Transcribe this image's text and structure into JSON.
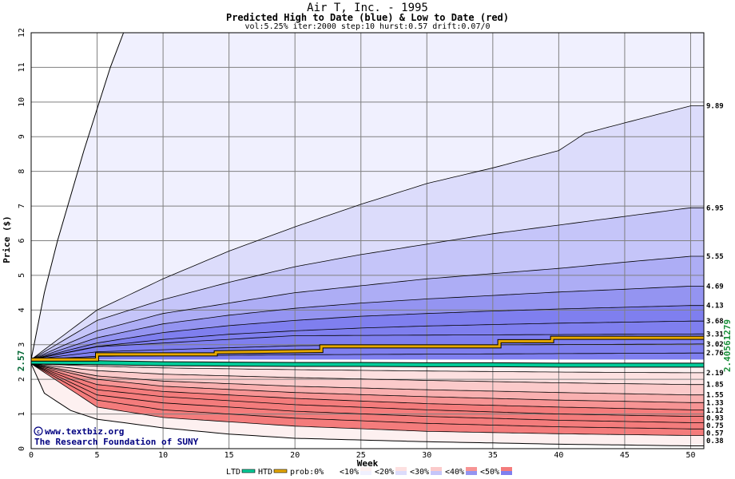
{
  "header": {
    "title": "Air T, Inc. - 1995",
    "subtitle": "Predicted High to Date (blue) &  Low to Date (red)",
    "params": "vol:5.25% iter:2000 step:10 hurst:0.57 drift:0.07/0"
  },
  "watermark": {
    "site": "www.textbiz.org",
    "org": "The Research Foundation of SUNY"
  },
  "chart_data": {
    "type": "area",
    "xlabel": "Week",
    "ylabel": "Price ($)",
    "xlim": [
      0,
      51
    ],
    "ylim": [
      0,
      12
    ],
    "x_ticks": [
      0,
      5,
      10,
      15,
      20,
      25,
      30,
      35,
      40,
      45,
      50
    ],
    "y_ticks": [
      0,
      1,
      2,
      3,
      4,
      5,
      6,
      7,
      8,
      9,
      10,
      11,
      12
    ],
    "start_price": "2.57",
    "right_value_label": "2.40561279",
    "grid": true,
    "band_colors": {
      "upper": [
        "#f0f0fe",
        "#dcdcfb",
        "#c5c5f9",
        "#adadf5",
        "#9494f1",
        "#7f7fef"
      ],
      "lower": [
        "#fdf0f0",
        "#fde0e0",
        "#fbcaca",
        "#f9b0b0",
        "#f79494",
        "#f47c7c"
      ]
    },
    "upper_quantiles": [
      {
        "final": 9.89,
        "label": "9.89",
        "curve": [
          [
            0,
            2.57
          ],
          [
            5,
            4.0
          ],
          [
            10,
            4.9
          ],
          [
            15,
            5.7
          ],
          [
            20,
            6.4
          ],
          [
            25,
            7.05
          ],
          [
            30,
            7.65
          ],
          [
            35,
            8.1
          ],
          [
            40,
            8.6
          ],
          [
            42,
            9.1
          ],
          [
            45,
            9.4
          ],
          [
            50,
            9.89
          ]
        ]
      },
      {
        "final": 6.95,
        "label": "6.95",
        "curve": [
          [
            0,
            2.57
          ],
          [
            5,
            3.7
          ],
          [
            10,
            4.3
          ],
          [
            15,
            4.8
          ],
          [
            20,
            5.25
          ],
          [
            25,
            5.6
          ],
          [
            30,
            5.9
          ],
          [
            35,
            6.2
          ],
          [
            40,
            6.45
          ],
          [
            45,
            6.7
          ],
          [
            50,
            6.95
          ]
        ]
      },
      {
        "final": 5.55,
        "label": "5.55",
        "curve": [
          [
            0,
            2.57
          ],
          [
            5,
            3.4
          ],
          [
            10,
            3.9
          ],
          [
            15,
            4.2
          ],
          [
            20,
            4.5
          ],
          [
            25,
            4.7
          ],
          [
            30,
            4.9
          ],
          [
            35,
            5.05
          ],
          [
            40,
            5.2
          ],
          [
            45,
            5.38
          ],
          [
            50,
            5.55
          ]
        ]
      },
      {
        "final": 4.69,
        "label": "4.69",
        "curve": [
          [
            0,
            2.57
          ],
          [
            5,
            3.2
          ],
          [
            10,
            3.6
          ],
          [
            15,
            3.85
          ],
          [
            20,
            4.05
          ],
          [
            25,
            4.2
          ],
          [
            30,
            4.32
          ],
          [
            35,
            4.42
          ],
          [
            40,
            4.52
          ],
          [
            45,
            4.6
          ],
          [
            50,
            4.69
          ]
        ]
      },
      {
        "final": 4.13,
        "label": "4.13",
        "curve": [
          [
            0,
            2.57
          ],
          [
            5,
            3.05
          ],
          [
            10,
            3.35
          ],
          [
            15,
            3.55
          ],
          [
            20,
            3.7
          ],
          [
            25,
            3.82
          ],
          [
            30,
            3.9
          ],
          [
            35,
            3.97
          ],
          [
            40,
            4.03
          ],
          [
            45,
            4.08
          ],
          [
            50,
            4.13
          ]
        ]
      },
      {
        "final": 3.68,
        "label": "3.68",
        "curve": [
          [
            0,
            2.57
          ],
          [
            5,
            2.95
          ],
          [
            10,
            3.15
          ],
          [
            15,
            3.3
          ],
          [
            20,
            3.4
          ],
          [
            25,
            3.48
          ],
          [
            30,
            3.54
          ],
          [
            35,
            3.58
          ],
          [
            40,
            3.62
          ],
          [
            45,
            3.65
          ],
          [
            50,
            3.68
          ]
        ]
      }
    ],
    "lower_quantiles": [
      {
        "final": 2.19,
        "label": "2.19",
        "curve": [
          [
            0,
            2.45
          ],
          [
            5,
            2.38
          ],
          [
            10,
            2.33
          ],
          [
            20,
            2.28
          ],
          [
            30,
            2.24
          ],
          [
            40,
            2.21
          ],
          [
            50,
            2.19
          ]
        ]
      },
      {
        "final": 1.85,
        "label": "1.85",
        "curve": [
          [
            0,
            2.45
          ],
          [
            5,
            2.25
          ],
          [
            10,
            2.15
          ],
          [
            20,
            2.05
          ],
          [
            30,
            1.97
          ],
          [
            40,
            1.9
          ],
          [
            50,
            1.85
          ]
        ]
      },
      {
        "final": 1.55,
        "label": "1.55",
        "curve": [
          [
            0,
            2.45
          ],
          [
            5,
            2.1
          ],
          [
            10,
            1.95
          ],
          [
            20,
            1.8
          ],
          [
            30,
            1.7
          ],
          [
            40,
            1.62
          ],
          [
            50,
            1.55
          ]
        ]
      },
      {
        "final": 1.33,
        "label": "1.33",
        "curve": [
          [
            0,
            2.45
          ],
          [
            5,
            2.0
          ],
          [
            10,
            1.8
          ],
          [
            20,
            1.62
          ],
          [
            30,
            1.5
          ],
          [
            40,
            1.4
          ],
          [
            50,
            1.33
          ]
        ]
      },
      {
        "final": 1.12,
        "label": "1.12",
        "curve": [
          [
            0,
            2.45
          ],
          [
            5,
            1.85
          ],
          [
            10,
            1.65
          ],
          [
            20,
            1.45
          ],
          [
            30,
            1.3
          ],
          [
            40,
            1.2
          ],
          [
            50,
            1.12
          ]
        ]
      },
      {
        "final": 0.93,
        "label": "0.93",
        "curve": [
          [
            0,
            2.45
          ],
          [
            5,
            1.7
          ],
          [
            10,
            1.5
          ],
          [
            20,
            1.27
          ],
          [
            30,
            1.12
          ],
          [
            40,
            1.0
          ],
          [
            50,
            0.93
          ]
        ]
      },
      {
        "final": 0.75,
        "label": "0.75",
        "curve": [
          [
            0,
            2.45
          ],
          [
            5,
            1.55
          ],
          [
            10,
            1.32
          ],
          [
            20,
            1.08
          ],
          [
            30,
            0.93
          ],
          [
            40,
            0.82
          ],
          [
            50,
            0.75
          ]
        ]
      },
      {
        "final": 0.57,
        "label": "0.57",
        "curve": [
          [
            0,
            2.45
          ],
          [
            5,
            1.4
          ],
          [
            10,
            1.12
          ],
          [
            20,
            0.88
          ],
          [
            30,
            0.73
          ],
          [
            40,
            0.63
          ],
          [
            50,
            0.57
          ]
        ]
      },
      {
        "final": 0.38,
        "label": "0.38",
        "curve": [
          [
            0,
            2.45
          ],
          [
            5,
            1.2
          ],
          [
            10,
            0.9
          ],
          [
            20,
            0.65
          ],
          [
            30,
            0.5
          ],
          [
            40,
            0.43
          ],
          [
            50,
            0.38
          ]
        ]
      }
    ],
    "extra_labels": [
      {
        "label": "3.31",
        "y": 3.31
      },
      {
        "label": "3.02",
        "y": 3.02
      },
      {
        "label": "2.76",
        "y": 2.76
      }
    ],
    "max_envelope": [
      [
        0,
        2.57
      ],
      [
        1,
        4.5
      ],
      [
        2,
        6.0
      ],
      [
        3,
        7.3
      ],
      [
        4,
        8.6
      ],
      [
        5,
        9.8
      ],
      [
        6,
        11.0
      ],
      [
        7,
        12.0
      ]
    ],
    "min_envelope": [
      [
        0,
        2.45
      ],
      [
        1,
        1.6
      ],
      [
        3,
        1.1
      ],
      [
        5,
        0.85
      ],
      [
        10,
        0.6
      ],
      [
        15,
        0.42
      ],
      [
        20,
        0.3
      ],
      [
        30,
        0.2
      ],
      [
        40,
        0.13
      ],
      [
        50,
        0.08
      ]
    ],
    "htd_series": [
      [
        0,
        2.57
      ],
      [
        5,
        2.57
      ],
      [
        5,
        2.72
      ],
      [
        10,
        2.72
      ],
      [
        14,
        2.72
      ],
      [
        14,
        2.78
      ],
      [
        22,
        2.82
      ],
      [
        22,
        2.95
      ],
      [
        35.5,
        2.95
      ],
      [
        35.5,
        3.1
      ],
      [
        39.5,
        3.1
      ],
      [
        39.5,
        3.2
      ],
      [
        51,
        3.2
      ]
    ],
    "ltd_series": [
      [
        0,
        2.5
      ],
      [
        5,
        2.48
      ],
      [
        10,
        2.45
      ],
      [
        15,
        2.44
      ],
      [
        20,
        2.43
      ],
      [
        25,
        2.43
      ],
      [
        30,
        2.42
      ],
      [
        35,
        2.42
      ],
      [
        40,
        2.41
      ],
      [
        45,
        2.41
      ],
      [
        51,
        2.41
      ]
    ],
    "legend": [
      {
        "label": "LTD",
        "kind": "line",
        "color": "#00cc99"
      },
      {
        "label": "HTD",
        "kind": "line",
        "color": "#e6a800"
      },
      {
        "label": "prob:0%",
        "kind": "swatch",
        "colors": [
          "#ffffff",
          "#ffffff"
        ]
      },
      {
        "label": "<10%",
        "kind": "swatch",
        "colors": [
          "#fdf0f0",
          "#f0f0fe"
        ]
      },
      {
        "label": "<20%",
        "kind": "swatch",
        "colors": [
          "#fde0e0",
          "#dcdcfb"
        ]
      },
      {
        "label": "<30%",
        "kind": "swatch",
        "colors": [
          "#fbcaca",
          "#c5c5f9"
        ]
      },
      {
        "label": "<40%",
        "kind": "swatch",
        "colors": [
          "#f79494",
          "#9494f1"
        ]
      },
      {
        "label": "<50%",
        "kind": "swatch",
        "colors": [
          "#f47c7c",
          "#7f7fef"
        ]
      }
    ]
  }
}
